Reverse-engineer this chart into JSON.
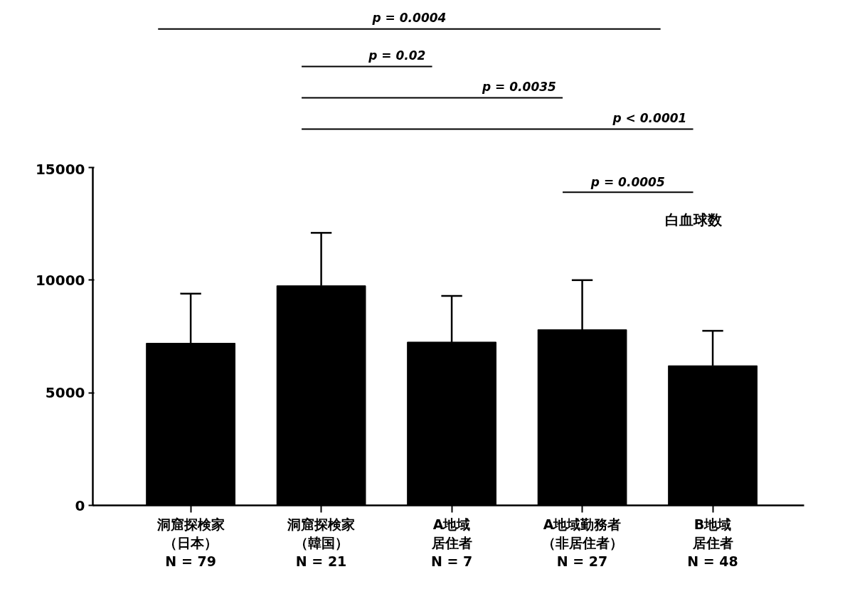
{
  "chart_data": {
    "type": "bar",
    "title": "白血球数",
    "categories": [
      "洞窟探検家（日本）\nN = 79",
      "洞窟探検家（韓国）\nN = 21",
      "A地域居住者\nN = 7",
      "A地域勤務者（非居住者）\nN = 27",
      "B地域居住者\nN = 48"
    ],
    "values": [
      7200,
      9750,
      7250,
      7800,
      6200
    ],
    "errors": [
      [
        7200,
        9400
      ],
      [
        9750,
        12100
      ],
      [
        7250,
        9300
      ],
      [
        7800,
        10000
      ],
      [
        6200,
        7750
      ]
    ],
    "color": "#000000",
    "ylim": [
      0,
      15000
    ],
    "yticks": [
      0,
      5000,
      10000,
      15000
    ],
    "grid": false,
    "annotations": [
      "p = 0.0004",
      "p = 0.02",
      "p = 0.0035",
      "p < 0.0001",
      "p = 0.0005"
    ]
  }
}
